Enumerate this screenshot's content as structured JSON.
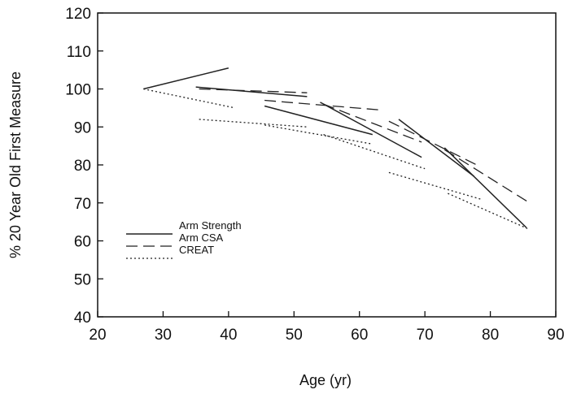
{
  "chart_data": {
    "type": "line",
    "title": "",
    "xlabel": "Age (yr)",
    "ylabel": "% 20 Year Old First Measure",
    "xlim": [
      20,
      90
    ],
    "ylim": [
      40,
      120
    ],
    "x_ticks": [
      "20",
      "30",
      "40",
      "50",
      "60",
      "70",
      "80",
      "90"
    ],
    "y_ticks": [
      "40",
      "50",
      "60",
      "70",
      "80",
      "90",
      "100",
      "110",
      "120"
    ],
    "grid": false,
    "legend_position": "lower-left",
    "series": [
      {
        "name": "Arm Strength",
        "style": "solid",
        "segments": [
          [
            [
              27,
              100
            ],
            [
              40,
              105.5
            ]
          ],
          [
            [
              35,
              100.5
            ],
            [
              52,
              98
            ]
          ],
          [
            [
              45.5,
              95.5
            ],
            [
              62,
              88
            ]
          ],
          [
            [
              54,
              96.5
            ],
            [
              69.5,
              82
            ]
          ],
          [
            [
              66,
              92
            ],
            [
              77.5,
              77
            ]
          ],
          [
            [
              73,
              84.5
            ],
            [
              85.5,
              63.5
            ]
          ]
        ]
      },
      {
        "name": "Arm CSA",
        "style": "dashed",
        "segments": [
          [
            [
              35.5,
              100
            ],
            [
              52,
              99
            ]
          ],
          [
            [
              45.5,
              97
            ],
            [
              63,
              94.5
            ]
          ],
          [
            [
              54.5,
              96
            ],
            [
              69.5,
              86
            ]
          ],
          [
            [
              64.5,
              91.5
            ],
            [
              78.5,
              79.5
            ]
          ],
          [
            [
              73,
              84
            ],
            [
              86,
              70
            ]
          ]
        ]
      },
      {
        "name": "CREAT",
        "style": "dotted",
        "segments": [
          [
            [
              27,
              100
            ],
            [
              41,
              95
            ]
          ],
          [
            [
              35.5,
              92
            ],
            [
              52,
              90
            ]
          ],
          [
            [
              45.5,
              90.5
            ],
            [
              62,
              85.5
            ]
          ],
          [
            [
              54.5,
              88
            ],
            [
              70,
              79
            ]
          ],
          [
            [
              64.5,
              78
            ],
            [
              78.5,
              71
            ]
          ],
          [
            [
              73.5,
              72.5
            ],
            [
              86,
              63
            ]
          ]
        ]
      }
    ]
  }
}
